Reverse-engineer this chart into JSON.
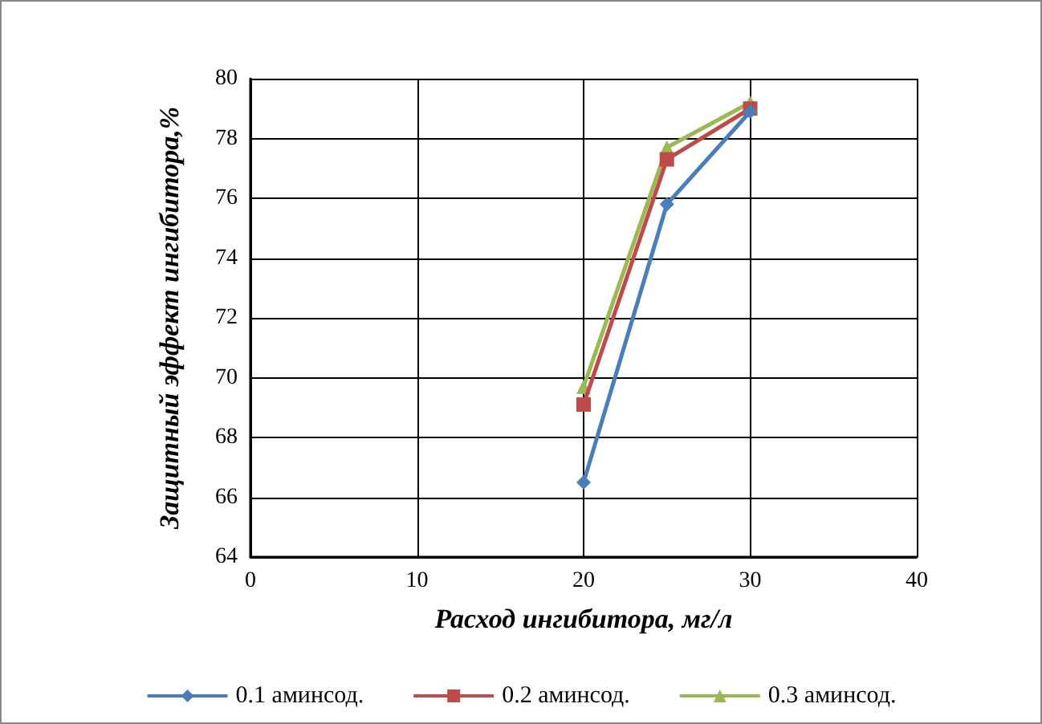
{
  "chart_data": {
    "type": "line",
    "xlabel": "Расход ингибитора, мг/л",
    "ylabel": "Защитный эффект ингибитора,%",
    "x": [
      20,
      25,
      30
    ],
    "series": [
      {
        "name": "0.1 аминсод.",
        "color": "#4a7ebb",
        "marker": "diamond",
        "values": [
          66.5,
          75.8,
          78.9
        ]
      },
      {
        "name": "0.2 аминсод.",
        "color": "#be4b48",
        "marker": "square",
        "values": [
          69.1,
          77.3,
          79.0
        ]
      },
      {
        "name": "0.3 аминсод.",
        "color": "#98b954",
        "marker": "triangle",
        "values": [
          69.7,
          77.7,
          79.2
        ]
      }
    ],
    "xlim": [
      0,
      40
    ],
    "xticks": [
      0,
      10,
      20,
      30,
      40
    ],
    "ylim": [
      64,
      80
    ],
    "yticks": [
      64,
      66,
      68,
      70,
      72,
      74,
      76,
      78,
      80
    ],
    "grid": true,
    "legend": "bottom",
    "line_style": "solid"
  }
}
